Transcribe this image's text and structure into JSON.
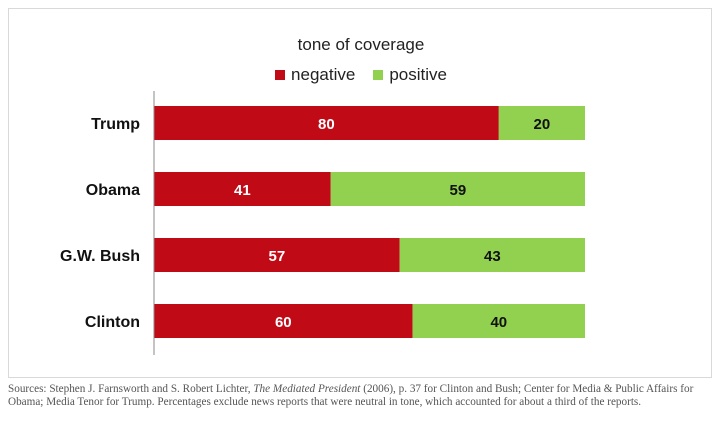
{
  "chart_data": {
    "type": "bar",
    "orientation": "horizontal",
    "stacked": true,
    "title": "tone of coverage",
    "categories": [
      "Trump",
      "Obama",
      "G.W. Bush",
      "Clinton"
    ],
    "series": [
      {
        "name": "negative",
        "color": "#c00a16",
        "values": [
          80,
          41,
          57,
          60
        ]
      },
      {
        "name": "positive",
        "color": "#92d050",
        "values": [
          20,
          59,
          43,
          40
        ]
      }
    ],
    "xlim": [
      0,
      100
    ],
    "grid": false,
    "legend_position": "top-center",
    "data_labels": true
  },
  "footnote": {
    "before_italic": "Sources: Stephen J. Farnsworth and S. Robert Lichter, ",
    "italic": "The Mediated President",
    "after_italic": " (2006), p. 37 for Clinton and Bush; Center for Media & Public Affairs for Obama; Media Tenor for Trump. Percentages exclude news reports that were neutral in tone, which accounted for about a third of the reports."
  }
}
